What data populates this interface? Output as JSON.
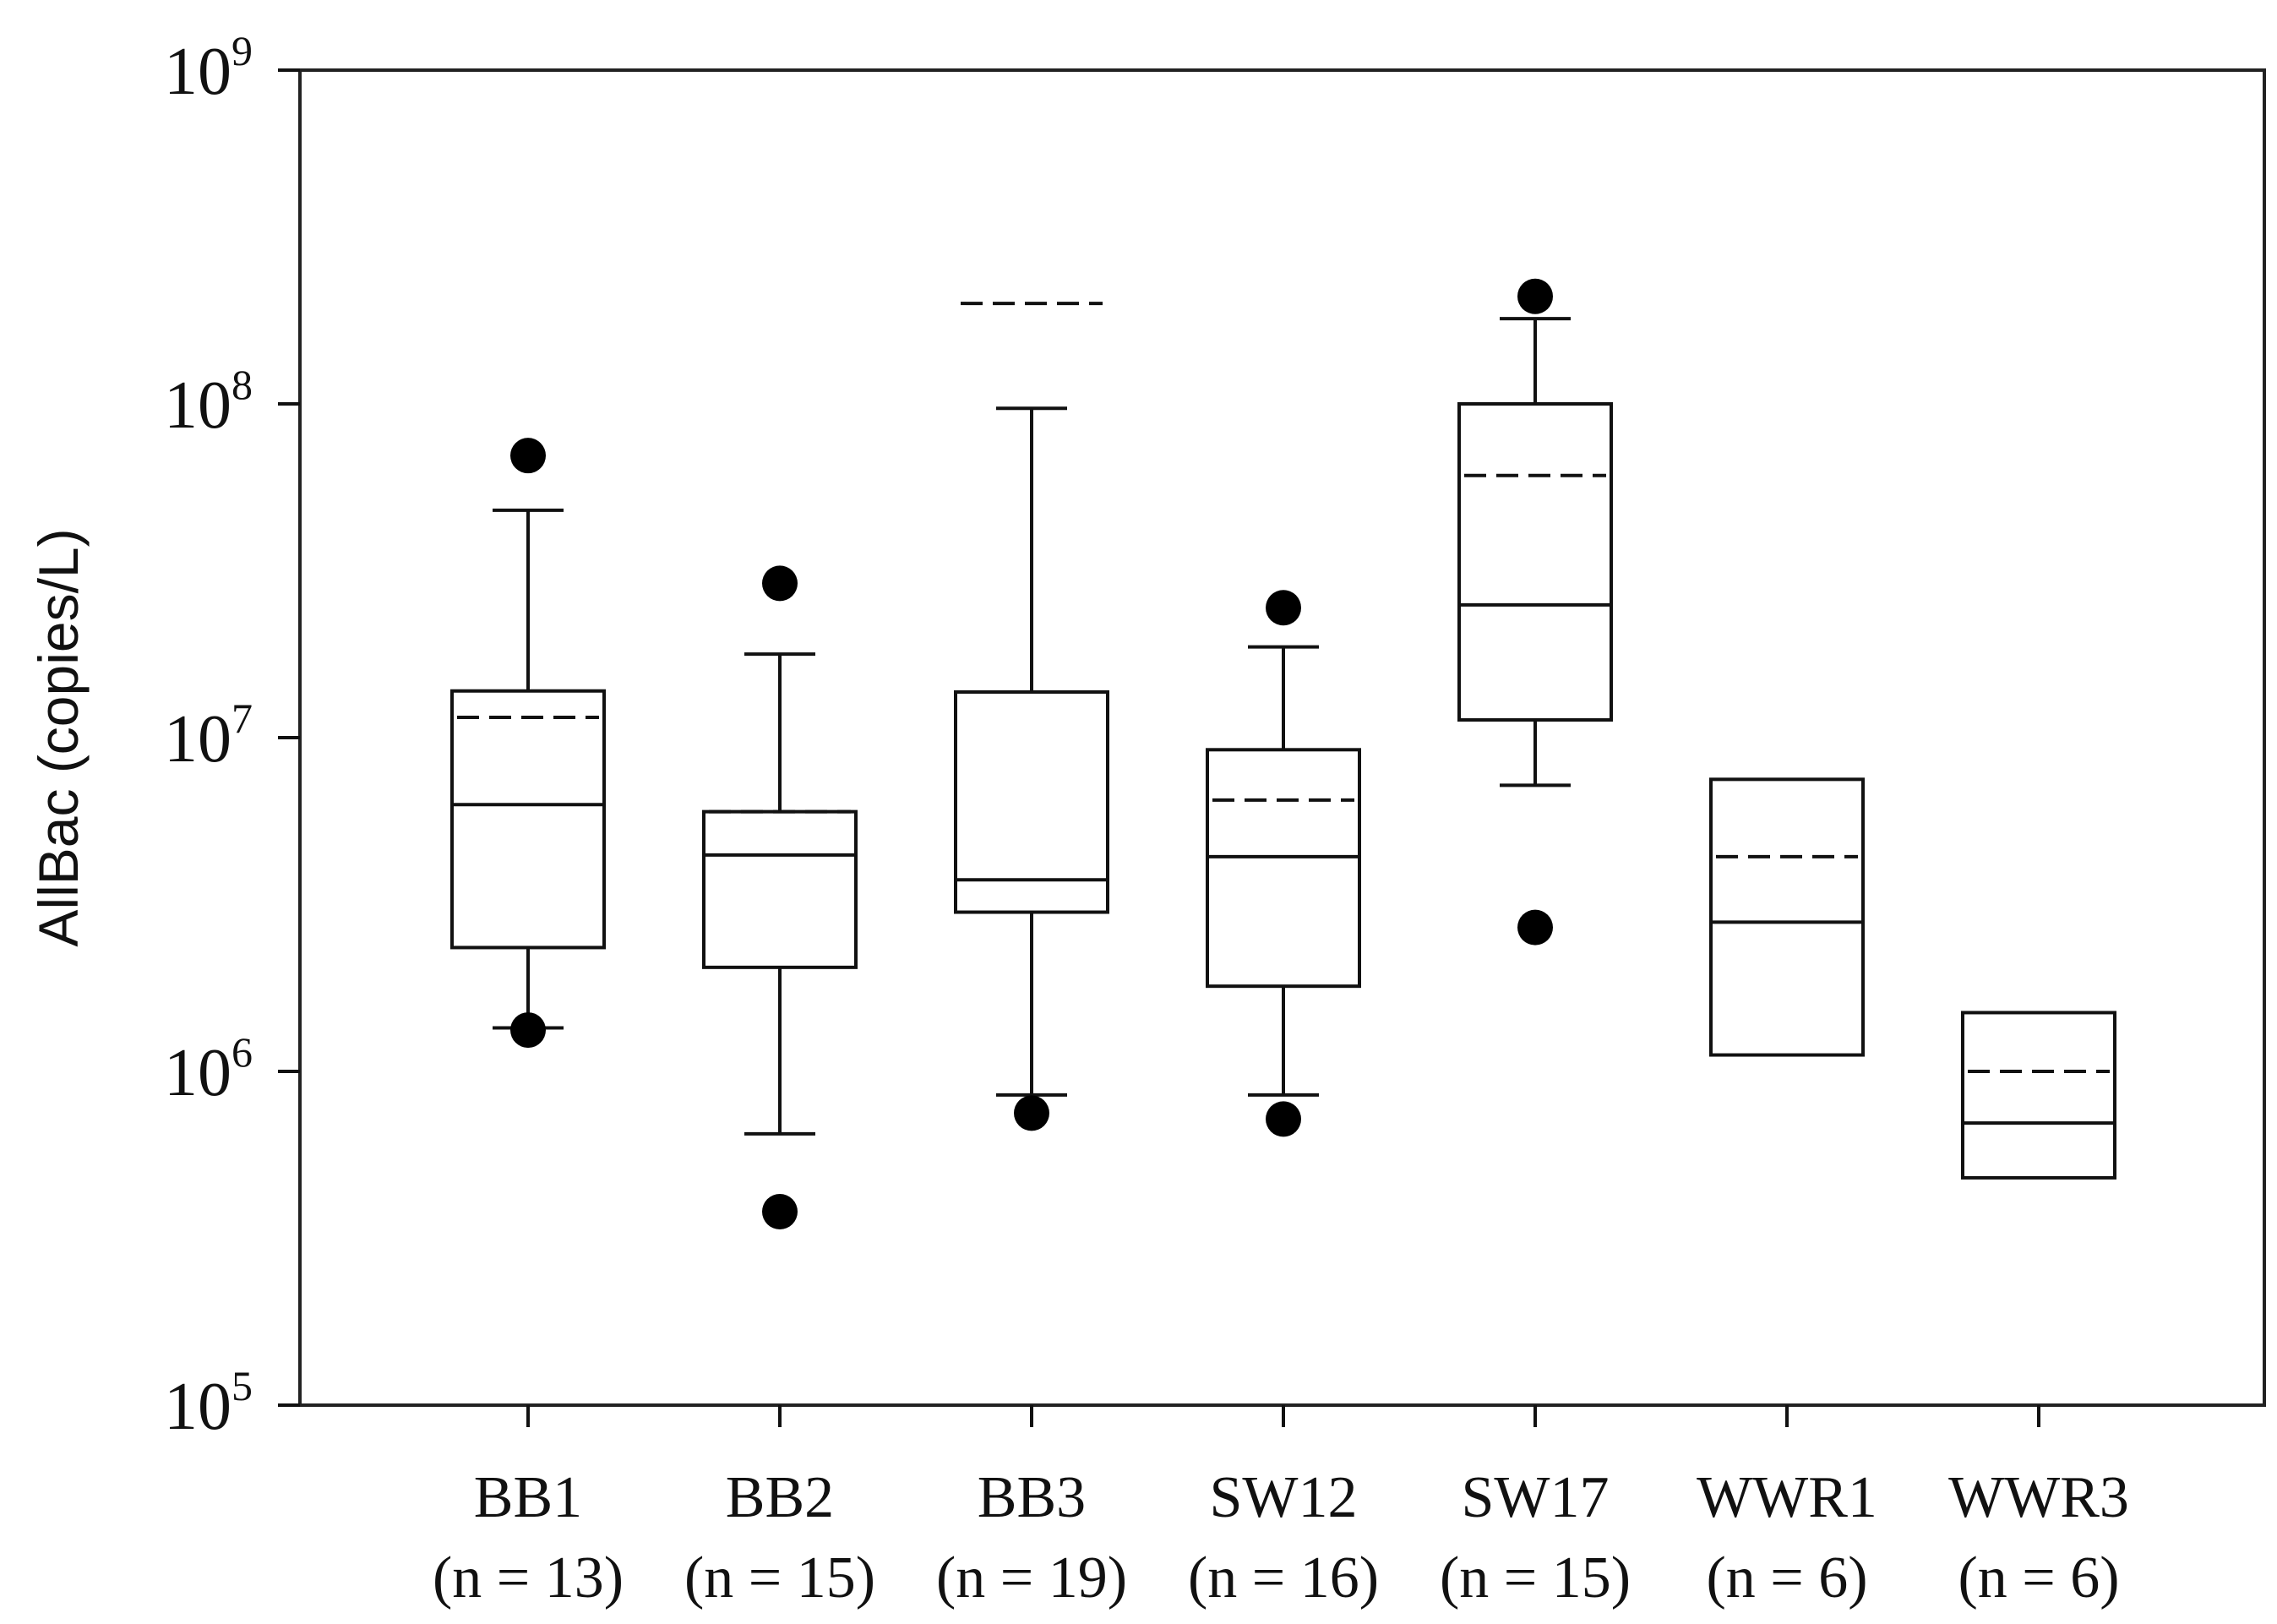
{
  "chart_data": {
    "type": "box",
    "title": "",
    "xlabel": "",
    "ylabel": "AllBac (copies/L)",
    "yscale": "log",
    "ylim": [
      100000,
      1000000000
    ],
    "yticks": [
      {
        "value": 100000,
        "base": "10",
        "exp": "5"
      },
      {
        "value": 1000000,
        "base": "10",
        "exp": "6"
      },
      {
        "value": 10000000,
        "base": "10",
        "exp": "7"
      },
      {
        "value": 100000000,
        "base": "10",
        "exp": "8"
      },
      {
        "value": 1000000000,
        "base": "10",
        "exp": "9"
      }
    ],
    "legend": "none",
    "grid": false,
    "boxes": [
      {
        "name": "BB1",
        "n_label": "(n = 13)",
        "whisker_low": 1350000,
        "q1": 2350000,
        "median": 6300000,
        "mean": 11500000,
        "q3": 13800000,
        "whisker_high": 48000000,
        "outliers": [
          70000000,
          1330000
        ]
      },
      {
        "name": "BB2",
        "n_label": "(n = 15)",
        "whisker_low": 650000,
        "q1": 2050000,
        "median": 4450000,
        "mean": 6000000,
        "q3": 6000000,
        "whisker_high": 17800000,
        "outliers": [
          29000000,
          380000
        ]
      },
      {
        "name": "BB3",
        "n_label": "(n = 19)",
        "whisker_low": 850000,
        "q1": 3000000,
        "median": 3750000,
        "mean": 200000000,
        "q3": 13700000,
        "whisker_high": 97000000,
        "outliers": [
          750000
        ]
      },
      {
        "name": "SW12",
        "n_label": "(n = 16)",
        "whisker_low": 850000,
        "q1": 1800000,
        "median": 4400000,
        "mean": 6500000,
        "q3": 9200000,
        "whisker_high": 18700000,
        "outliers": [
          24500000,
          720000
        ]
      },
      {
        "name": "SW17",
        "n_label": "(n = 15)",
        "whisker_low": 7200000,
        "q1": 11300000,
        "median": 25000000,
        "mean": 61000000,
        "q3": 100000000,
        "whisker_high": 180000000,
        "outliers": [
          210000000,
          2700000
        ]
      },
      {
        "name": "WWR1",
        "n_label": "(n = 6)",
        "whisker_low": null,
        "q1": 1120000,
        "median": 2800000,
        "mean": 4400000,
        "q3": 7500000,
        "whisker_high": null,
        "outliers": []
      },
      {
        "name": "WWR3",
        "n_label": "(n = 6)",
        "whisker_low": null,
        "q1": 480000,
        "median": 700000,
        "mean": 1000000,
        "q3": 1500000,
        "whisker_high": null,
        "outliers": []
      }
    ],
    "colors": {
      "stroke": "#111111",
      "outlier": "#000000",
      "mean_line_style": "dashed"
    }
  }
}
